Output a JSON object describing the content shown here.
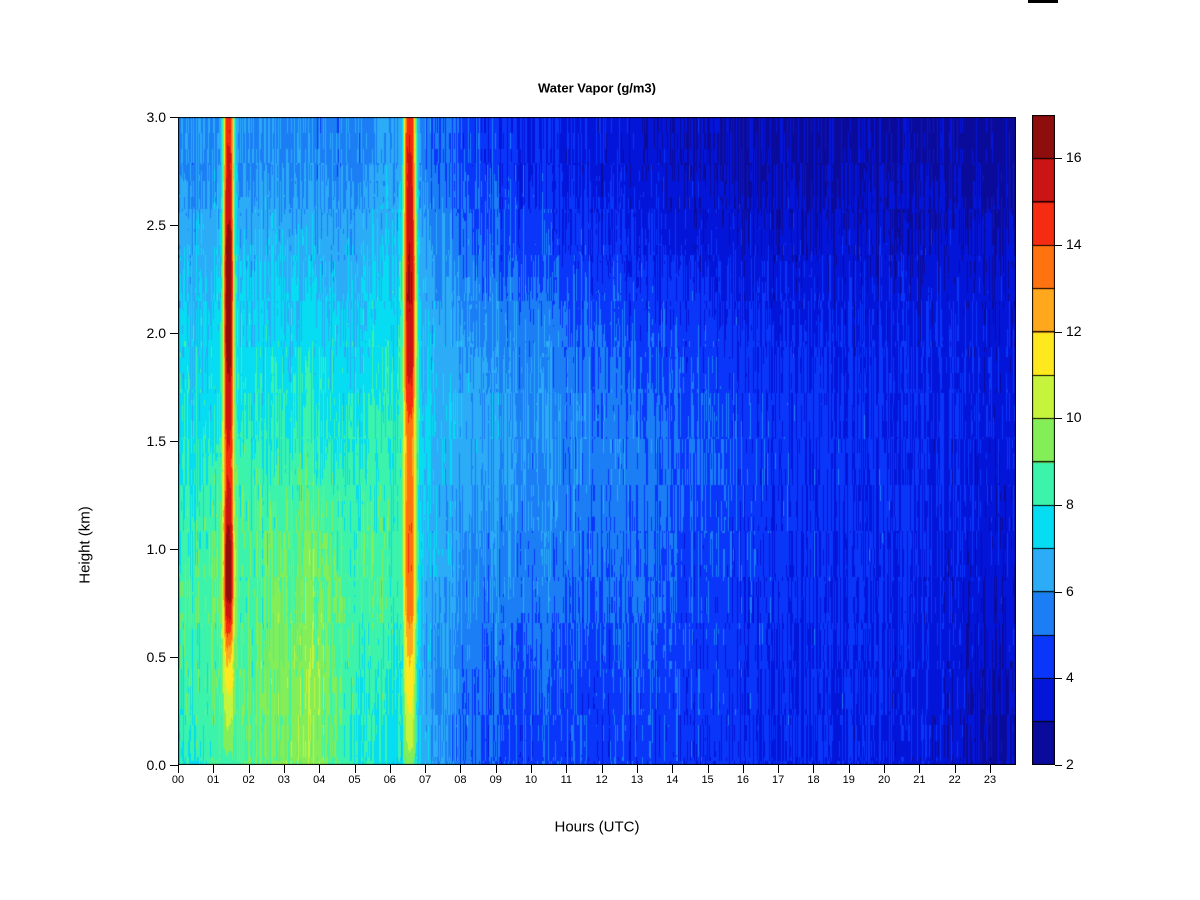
{
  "figure": {
    "title": "Water Vapor (g/m3)",
    "xlabel": "Hours (UTC)",
    "ylabel": "Height (km)"
  },
  "chart_data": {
    "type": "heatmap",
    "title": "Water Vapor (g/m3)",
    "xlabel": "Hours (UTC)",
    "ylabel": "Height (km)",
    "units": "g/m3",
    "x_range_hours": [
      0,
      24
    ],
    "y_range_km": [
      0.0,
      3.0
    ],
    "x_tick_labels": [
      "00",
      "01",
      "02",
      "03",
      "04",
      "05",
      "06",
      "07",
      "08",
      "09",
      "10",
      "11",
      "12",
      "13",
      "14",
      "15",
      "16",
      "17",
      "18",
      "19",
      "20",
      "21",
      "22",
      "23"
    ],
    "y_tick_labels": [
      "0.0",
      "0.5",
      "1.0",
      "1.5",
      "2.0",
      "2.5",
      "3.0"
    ],
    "colorbar": {
      "min": 2,
      "max": 17,
      "tick_values": [
        2,
        4,
        6,
        8,
        10,
        12,
        14,
        16
      ],
      "bin_size": 1,
      "palette": [
        "#0b0b9b",
        "#0415da",
        "#0a36fa",
        "#1b7ef5",
        "#2cabf7",
        "#06dcf2",
        "#3cf3ab",
        "#83ee58",
        "#c6f43c",
        "#ffe81e",
        "#ffa81e",
        "#ff7210",
        "#f52c12",
        "#cb1414",
        "#8e0e0e"
      ]
    },
    "grid": {
      "hours": [
        0,
        1,
        2,
        3,
        4,
        5,
        6,
        7,
        8,
        9,
        10,
        11,
        12,
        13,
        14,
        15,
        16,
        17,
        18,
        19,
        20,
        21,
        22,
        23
      ],
      "heights_km": [
        0.0,
        0.4,
        0.8,
        1.2,
        1.6,
        2.0,
        2.4,
        2.8
      ],
      "values_g_m3": [
        [
          7.6,
          8.6,
          8.8,
          9.4,
          9.6,
          8.0,
          7.6,
          6.6,
          5.2,
          4.8,
          4.6,
          4.6,
          4.4,
          4.6,
          4.4,
          4.2,
          4.2,
          4.0,
          4.0,
          3.9,
          3.8,
          3.7,
          3.2,
          2.8
        ],
        [
          8.2,
          8.8,
          8.7,
          9.5,
          9.7,
          8.2,
          8.0,
          6.4,
          5.4,
          5.0,
          4.8,
          4.8,
          4.6,
          4.8,
          4.6,
          4.4,
          4.3,
          4.1,
          4.1,
          4.0,
          3.9,
          3.8,
          3.4,
          3.0
        ],
        [
          8.4,
          9.0,
          8.6,
          9.2,
          9.4,
          8.6,
          8.6,
          6.8,
          5.8,
          5.6,
          5.4,
          5.2,
          5.0,
          5.2,
          4.8,
          4.6,
          4.4,
          4.2,
          4.2,
          4.1,
          4.0,
          3.9,
          3.6,
          3.3
        ],
        [
          7.8,
          8.6,
          8.5,
          8.8,
          8.8,
          8.4,
          8.5,
          7.0,
          6.2,
          6.0,
          5.8,
          5.6,
          5.4,
          5.4,
          5.0,
          4.8,
          4.6,
          4.4,
          4.3,
          4.2,
          4.1,
          4.0,
          3.8,
          3.5
        ],
        [
          7.5,
          7.8,
          7.8,
          8.0,
          8.0,
          7.8,
          8.2,
          7.2,
          6.6,
          6.2,
          6.0,
          5.8,
          5.6,
          5.4,
          5.0,
          4.8,
          4.6,
          4.4,
          4.3,
          4.2,
          4.1,
          4.0,
          3.9,
          3.7
        ],
        [
          7.0,
          7.4,
          7.3,
          7.4,
          7.4,
          7.2,
          7.6,
          6.8,
          6.2,
          5.8,
          5.5,
          5.2,
          5.0,
          4.8,
          4.6,
          4.4,
          4.2,
          4.1,
          4.0,
          3.9,
          3.8,
          3.8,
          3.7,
          3.5
        ],
        [
          6.4,
          6.8,
          6.6,
          6.7,
          6.6,
          6.5,
          7.0,
          6.2,
          5.4,
          5.0,
          4.6,
          4.4,
          4.2,
          4.0,
          3.8,
          3.6,
          3.5,
          3.4,
          3.4,
          3.3,
          3.3,
          3.2,
          3.2,
          3.1
        ],
        [
          5.6,
          6.0,
          5.8,
          5.9,
          5.8,
          5.7,
          6.2,
          5.5,
          4.7,
          4.3,
          4.0,
          3.8,
          3.6,
          3.4,
          3.2,
          3.0,
          2.9,
          2.9,
          2.8,
          2.8,
          2.8,
          2.7,
          2.7,
          2.6
        ]
      ]
    },
    "plumes": [
      {
        "name": "plume-0130-utc",
        "center_hour": 1.42,
        "core_halfwidth_hours": 0.04,
        "sigma_hours": 0.08,
        "profile_height_value": [
          [
            0.0,
            8.5
          ],
          [
            0.15,
            9.8
          ],
          [
            0.3,
            10.8
          ],
          [
            0.5,
            12.3
          ],
          [
            0.65,
            14.8
          ],
          [
            0.8,
            16.6
          ],
          [
            1.0,
            16.6
          ],
          [
            1.2,
            15.6
          ],
          [
            1.4,
            14.6
          ],
          [
            1.6,
            15.6
          ],
          [
            1.8,
            16.0
          ],
          [
            2.0,
            16.7
          ],
          [
            2.4,
            16.7
          ],
          [
            2.6,
            15.6
          ],
          [
            2.8,
            15.2
          ],
          [
            3.0,
            14.9
          ]
        ]
      },
      {
        "name": "plume-0630-utc",
        "center_hour": 6.55,
        "core_halfwidth_hours": 0.055,
        "sigma_hours": 0.09,
        "profile_height_value": [
          [
            0.0,
            9.5
          ],
          [
            0.15,
            10.6
          ],
          [
            0.3,
            11.2
          ],
          [
            0.5,
            12.0
          ],
          [
            0.7,
            13.2
          ],
          [
            0.9,
            13.9
          ],
          [
            1.1,
            13.9
          ],
          [
            1.3,
            13.4
          ],
          [
            1.5,
            13.2
          ],
          [
            1.7,
            14.6
          ],
          [
            1.9,
            15.6
          ],
          [
            2.2,
            16.1
          ],
          [
            2.5,
            15.7
          ],
          [
            2.8,
            15.1
          ],
          [
            3.0,
            14.6
          ]
        ]
      }
    ]
  }
}
